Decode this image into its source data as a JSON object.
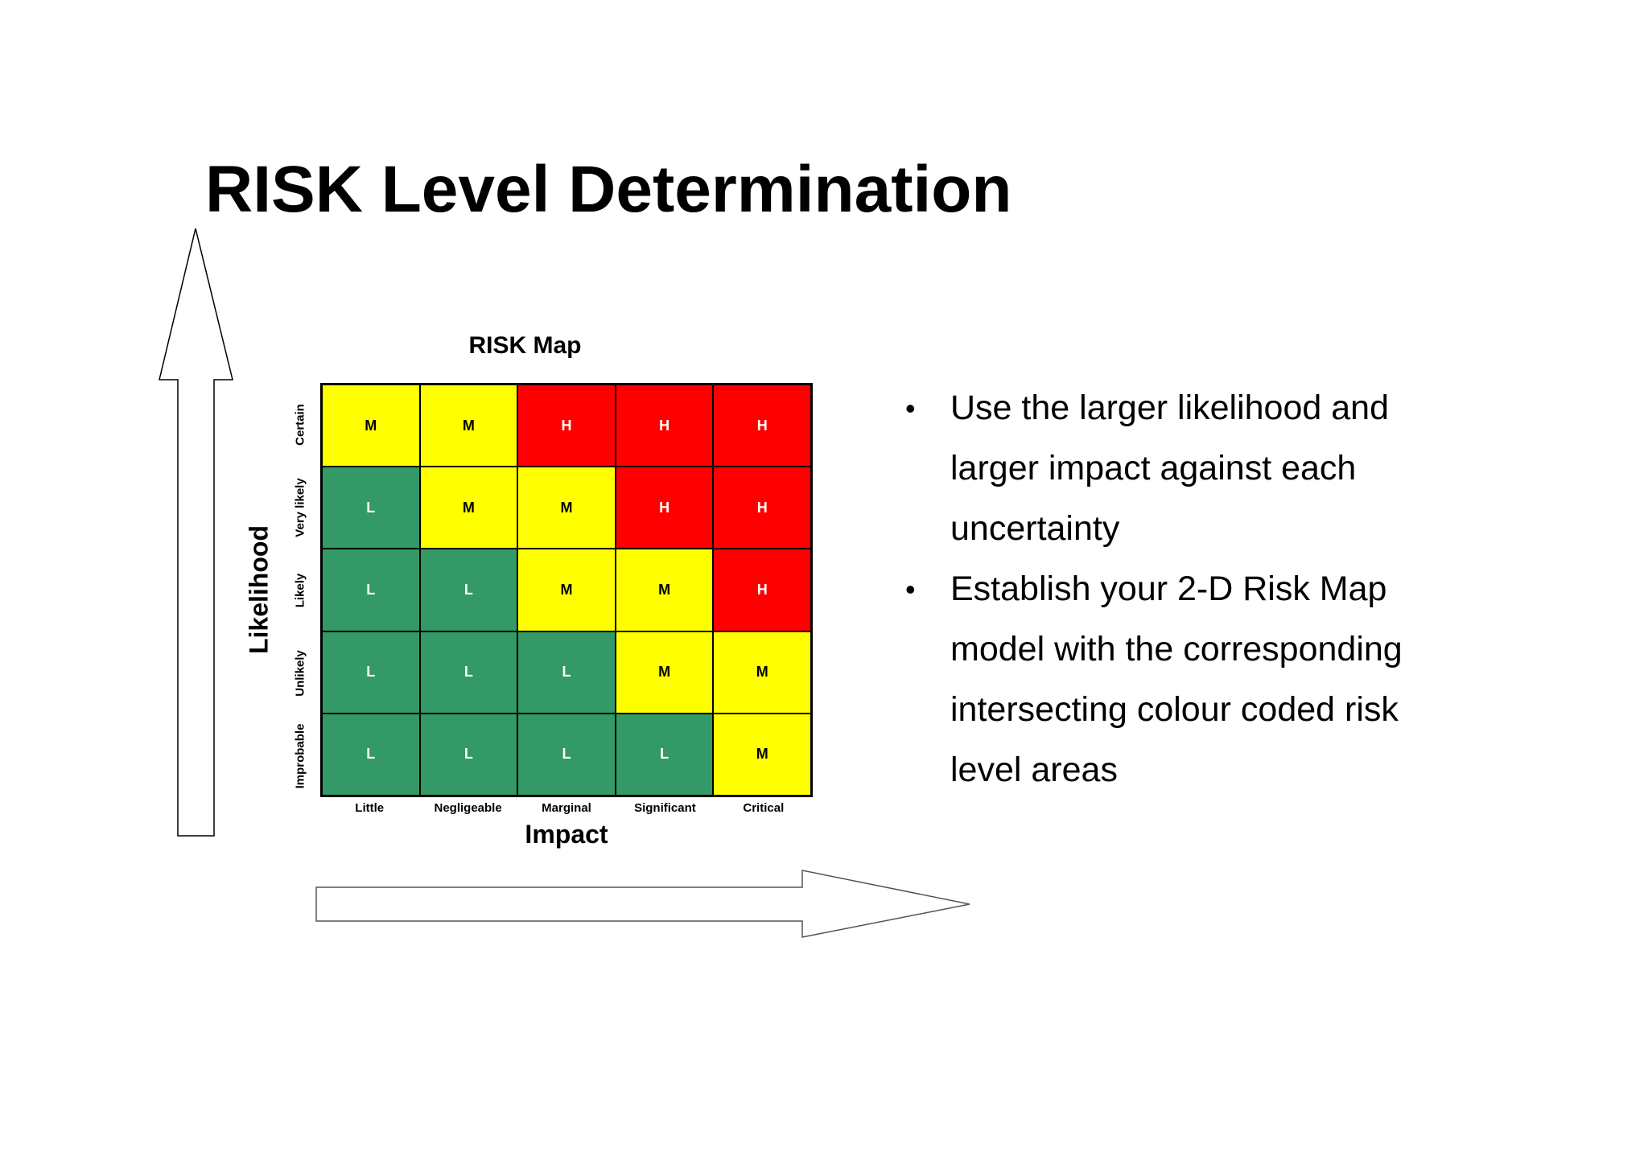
{
  "slide": {
    "title": "RISK Level Determination",
    "bullets": [
      "Use the larger likelihood and larger impact against each uncertainty",
      "Establish your 2-D Risk Map model with the corresponding intersecting colour coded risk level areas"
    ],
    "bullet_glyph": "•"
  },
  "risk_map": {
    "title": "RISK Map",
    "y_axis_label": "Likelihood",
    "x_axis_label": "Impact",
    "likelihood_levels": [
      "Certain",
      "Very likely",
      "Likely",
      "Unlikely",
      "Improbable"
    ],
    "impact_levels": [
      "Little",
      "Negligeable",
      "Marginal",
      "Significant",
      "Critical"
    ],
    "cells": [
      [
        "M",
        "M",
        "H",
        "H",
        "H"
      ],
      [
        "L",
        "M",
        "M",
        "H",
        "H"
      ],
      [
        "L",
        "L",
        "M",
        "M",
        "H"
      ],
      [
        "L",
        "L",
        "L",
        "M",
        "M"
      ],
      [
        "L",
        "L",
        "L",
        "L",
        "M"
      ]
    ],
    "level_colors": {
      "L": "#339966",
      "M": "#ffff00",
      "H": "#ff0000"
    }
  },
  "icons": [
    "arrow-up-icon",
    "arrow-right-icon"
  ]
}
